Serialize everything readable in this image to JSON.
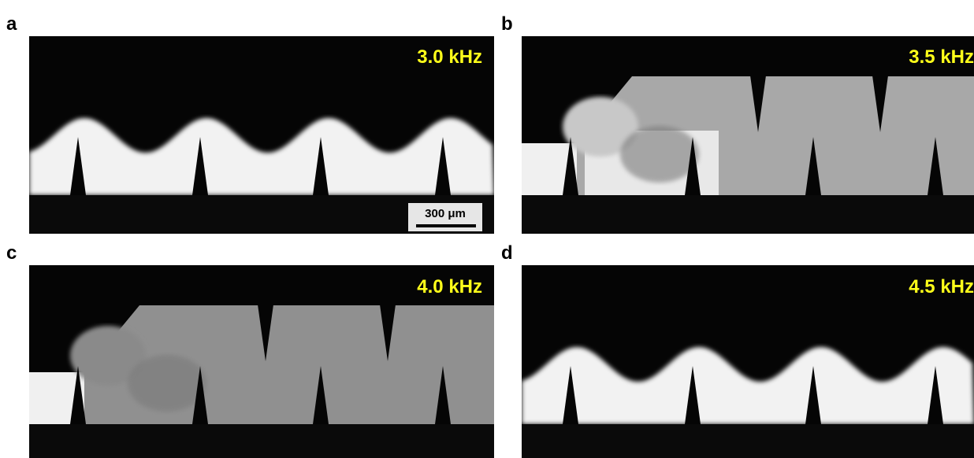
{
  "panels": [
    {
      "label": "a",
      "frequency": "3.0 kHz"
    },
    {
      "label": "b",
      "frequency": "3.5 kHz"
    },
    {
      "label": "c",
      "frequency": "4.0 kHz"
    },
    {
      "label": "d",
      "frequency": "4.5 kHz"
    }
  ],
  "scale_bar": "300 μm"
}
